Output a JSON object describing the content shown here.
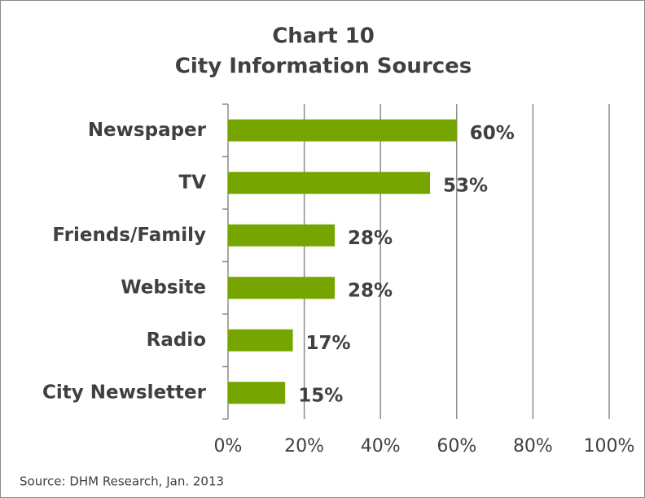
{
  "chart_data": {
    "type": "bar",
    "orientation": "horizontal",
    "title": "Chart 10",
    "subtitle": "City Information Sources",
    "categories": [
      "Newspaper",
      "TV",
      "Friends/Family",
      "Website",
      "Radio",
      "City Newsletter"
    ],
    "values": [
      60,
      53,
      28,
      28,
      17,
      15
    ],
    "value_labels": [
      "60%",
      "53%",
      "28%",
      "28%",
      "17%",
      "15%"
    ],
    "color": "#76a500",
    "xlim": [
      0,
      100
    ],
    "xticks": [
      {
        "value": 0,
        "label": "0%"
      },
      {
        "value": 20,
        "label": "20%"
      },
      {
        "value": 40,
        "label": "40%"
      },
      {
        "value": 60,
        "label": "60%"
      },
      {
        "value": 80,
        "label": "80%"
      },
      {
        "value": 100,
        "label": "100%"
      }
    ],
    "grid": true,
    "source": "Source: DHM Research, Jan. 2013"
  }
}
